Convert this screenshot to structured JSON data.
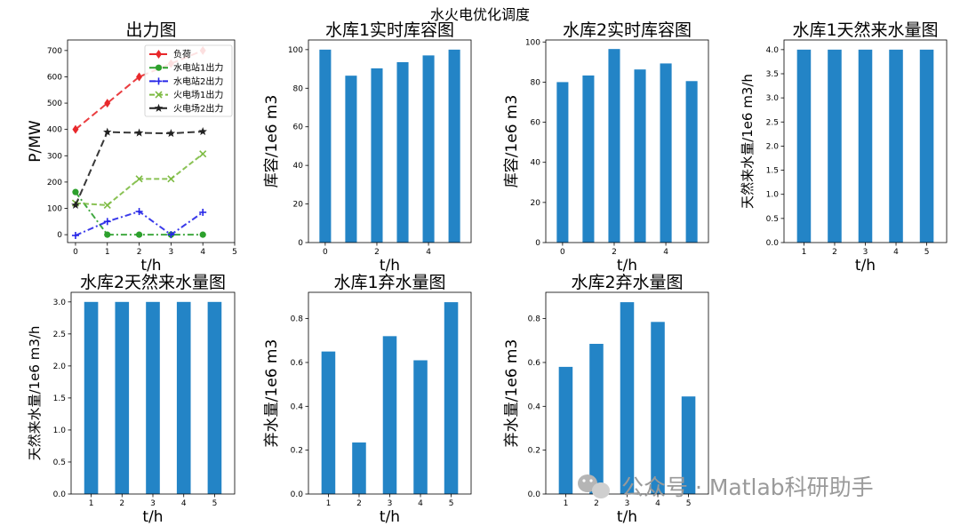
{
  "figure": {
    "suptitle": "水火电优化调度",
    "watermark": "公众号 · Matlab科研助手"
  },
  "chart_data": [
    {
      "id": "p0",
      "type": "line",
      "title": "出力图",
      "xlabel": "t/h",
      "ylabel": "P/MW",
      "xlim": [
        -0.25,
        5
      ],
      "ylim": [
        -30,
        740
      ],
      "xticks": [
        0,
        1,
        2,
        3,
        4,
        5
      ],
      "yticks": [
        0,
        100,
        200,
        300,
        400,
        500,
        600,
        700
      ],
      "legend_position": "upper-right",
      "series": [
        {
          "name": "负荷",
          "color": "#e8282b",
          "dash": "8,4",
          "marker": "diamond",
          "x": [
            0,
            1,
            2,
            3,
            4
          ],
          "y": [
            400,
            500,
            600,
            650,
            700
          ]
        },
        {
          "name": "水电站1出力",
          "color": "#2ca02c",
          "dash": "7,3,2,3",
          "marker": "circle",
          "x": [
            0,
            1,
            2,
            3,
            4
          ],
          "y": [
            162,
            0,
            0,
            0,
            0
          ]
        },
        {
          "name": "水电站2出力",
          "color": "#2626e8",
          "dash": "7,3,2,3",
          "marker": "plus",
          "x": [
            0,
            1,
            2,
            3,
            4
          ],
          "y": [
            -3,
            50,
            88,
            0,
            85
          ]
        },
        {
          "name": "火电场1出力",
          "color": "#7dbb42",
          "dash": "6,3",
          "marker": "x",
          "x": [
            0,
            1,
            2,
            3,
            4
          ],
          "y": [
            120,
            112,
            212,
            212,
            307
          ]
        },
        {
          "name": "火电场2出力",
          "color": "#222222",
          "dash": "8,4",
          "marker": "star",
          "x": [
            0,
            1,
            2,
            3,
            4
          ],
          "y": [
            112,
            390,
            387,
            385,
            392
          ]
        }
      ]
    },
    {
      "id": "p1",
      "type": "bar",
      "title": "水库1实时库容图",
      "xlabel": "t/h",
      "ylabel": "库容/1e6 m3",
      "categories": [
        0,
        1,
        2,
        3,
        4,
        5
      ],
      "values": [
        100,
        86.5,
        90.3,
        93.5,
        97,
        100
      ],
      "xticks": [
        0,
        2,
        4
      ],
      "xlim": [
        -0.65,
        5.65
      ],
      "ylim": [
        0,
        105
      ],
      "yticks": [
        0,
        20,
        40,
        60,
        80,
        100
      ]
    },
    {
      "id": "p2",
      "type": "bar",
      "title": "水库2实时库容图",
      "xlabel": "t/h",
      "ylabel": "库容/1e6 m3",
      "categories": [
        0,
        1,
        2,
        3,
        4,
        5
      ],
      "values": [
        80,
        83.3,
        96.5,
        86.3,
        89.3,
        80.5
      ],
      "xticks": [
        0,
        2,
        4
      ],
      "xlim": [
        -0.65,
        5.65
      ],
      "ylim": [
        0,
        101
      ],
      "yticks": [
        0,
        20,
        40,
        60,
        80,
        100
      ]
    },
    {
      "id": "p3",
      "type": "bar",
      "title": "水库1天然来水量图",
      "xlabel": "t/h",
      "ylabel": "天然来水量/1e6 m3/h",
      "categories": [
        1,
        2,
        3,
        4,
        5
      ],
      "values": [
        4.0,
        4.0,
        4.0,
        4.0,
        4.0
      ],
      "xticks": [
        1,
        2,
        3,
        4,
        5
      ],
      "xlim": [
        0.35,
        5.65
      ],
      "ylim": [
        0,
        4.2
      ],
      "yticks": [
        0.0,
        0.5,
        1.0,
        1.5,
        2.0,
        2.5,
        3.0,
        3.5,
        4.0
      ]
    },
    {
      "id": "p4",
      "type": "bar",
      "title": "水库2天然来水量图",
      "xlabel": "t/h",
      "ylabel": "天然来水量/1e6 m3/h",
      "categories": [
        1,
        2,
        3,
        4,
        5
      ],
      "values": [
        3.0,
        3.0,
        3.0,
        3.0,
        3.0
      ],
      "xticks": [
        1,
        2,
        3,
        4,
        5
      ],
      "xlim": [
        0.35,
        5.65
      ],
      "ylim": [
        0,
        3.15
      ],
      "yticks": [
        0.0,
        0.5,
        1.0,
        1.5,
        2.0,
        2.5,
        3.0
      ]
    },
    {
      "id": "p5",
      "type": "bar",
      "title": "水库1弃水量图",
      "xlabel": "t/h",
      "ylabel": "弃水量/1e6 m3",
      "categories": [
        1,
        2,
        3,
        4,
        5
      ],
      "values": [
        0.65,
        0.235,
        0.72,
        0.61,
        0.875
      ],
      "xticks": [
        1,
        2,
        3,
        4,
        5
      ],
      "xlim": [
        0.35,
        5.65
      ],
      "ylim": [
        0,
        0.92
      ],
      "yticks": [
        0.0,
        0.2,
        0.4,
        0.6,
        0.8
      ]
    },
    {
      "id": "p6",
      "type": "bar",
      "title": "水库2弃水量图",
      "xlabel": "t/h",
      "ylabel": "弃水量/1e6 m3",
      "categories": [
        1,
        2,
        3,
        4,
        5
      ],
      "values": [
        0.58,
        0.685,
        0.875,
        0.785,
        0.445
      ],
      "xticks": [
        1,
        2,
        3,
        4,
        5
      ],
      "xlim": [
        0.35,
        5.65
      ],
      "ylim": [
        0,
        0.92
      ],
      "yticks": [
        0.0,
        0.2,
        0.4,
        0.6,
        0.8
      ]
    }
  ]
}
